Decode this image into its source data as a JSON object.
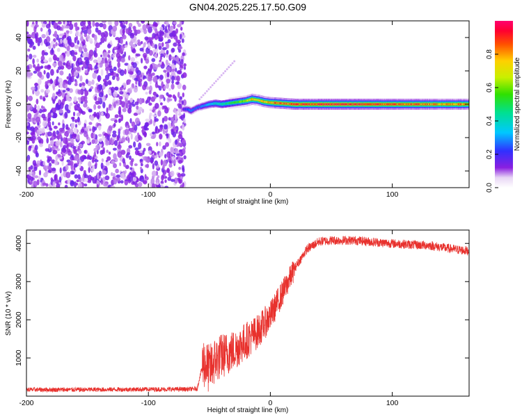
{
  "title": "GN04.2025.225.17.50.G09",
  "chart_data": [
    {
      "type": "heatmap",
      "xlabel": "Height of straight line (km)",
      "ylabel": "Frequency (Hz)",
      "xlim": [
        -200,
        163
      ],
      "ylim": [
        -50,
        50
      ],
      "x_ticks": [
        -200,
        -100,
        0,
        100
      ],
      "y_ticks": [
        -40,
        -20,
        0,
        20,
        40
      ],
      "noise_region_x": [
        -200,
        -70
      ],
      "ridge": {
        "x": [
          -72,
          -68,
          -65,
          -60,
          -55,
          -50,
          -45,
          -40,
          -35,
          -30,
          -25,
          -20,
          -15,
          -10,
          -5,
          0,
          10,
          20,
          40,
          60,
          80,
          100,
          120,
          140,
          163
        ],
        "freq": [
          -3,
          -3,
          -4,
          -2,
          -1,
          0,
          0.5,
          0,
          0.5,
          1,
          1.5,
          2,
          3,
          2.5,
          1.5,
          1,
          0.5,
          0,
          0,
          0,
          0,
          0,
          0,
          0,
          0
        ],
        "peak_amplitude": [
          0.15,
          0.25,
          0.3,
          0.25,
          0.3,
          0.35,
          0.4,
          0.45,
          0.5,
          0.55,
          0.6,
          0.7,
          0.8,
          0.75,
          0.8,
          0.85,
          0.9,
          0.95,
          0.95,
          0.95,
          0.95,
          0.9,
          0.9,
          0.85,
          0.85
        ]
      },
      "colorbar": {
        "label": "Normalized spectral amplitude",
        "ticks": [
          0.0,
          0.2,
          0.4,
          0.6,
          0.8
        ],
        "range": [
          0,
          1
        ]
      }
    },
    {
      "type": "line",
      "xlabel": "Height of straight line (km)",
      "ylabel": "SNR (10 * v/v)",
      "xlim": [
        -200,
        163
      ],
      "ylim": [
        0,
        4350
      ],
      "x_ticks": [
        -200,
        -100,
        0,
        100
      ],
      "y_ticks": [
        1000,
        2000,
        3000,
        4000
      ],
      "series": [
        {
          "color": "#e8312d",
          "x": [
            -200,
            -150,
            -100,
            -70,
            -60,
            -55,
            -50,
            -45,
            -40,
            -30,
            -20,
            -10,
            0,
            10,
            20,
            30,
            40,
            50,
            60,
            70,
            80,
            90,
            100,
            110,
            120,
            130,
            140,
            150,
            163
          ],
          "values": [
            170,
            170,
            180,
            180,
            190,
            900,
            700,
            950,
            1050,
            1200,
            1450,
            1700,
            2100,
            2700,
            3350,
            3850,
            4050,
            4080,
            4080,
            4080,
            4050,
            4020,
            4000,
            3980,
            3960,
            3950,
            3900,
            3850,
            3800
          ]
        }
      ]
    }
  ]
}
